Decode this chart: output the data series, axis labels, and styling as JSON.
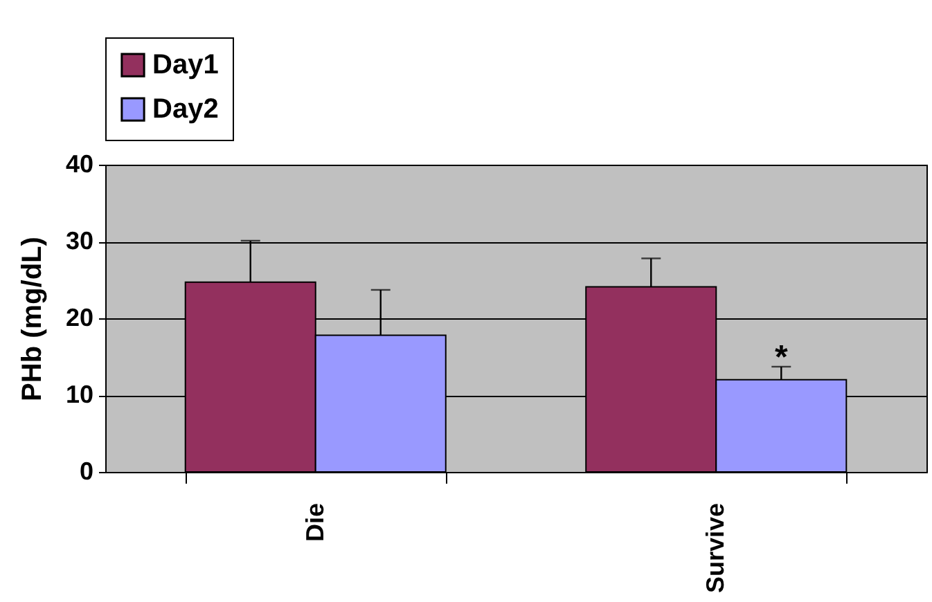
{
  "chart_data": {
    "type": "bar",
    "ylabel": "PHb (mg/dL)",
    "categories": [
      "Die",
      "Survive"
    ],
    "series": [
      {
        "name": "Day1",
        "color": "#93305e",
        "values": [
          24.7,
          24.1
        ],
        "errors": [
          [
            24.7,
            30.1
          ],
          [
            24.1,
            27.8
          ]
        ]
      },
      {
        "name": "Day2",
        "color": "#9999ff",
        "values": [
          17.8,
          12.0
        ],
        "errors": [
          [
            17.8,
            23.7
          ],
          [
            12.0,
            13.7
          ]
        ]
      }
    ],
    "ylim": [
      0,
      40
    ],
    "yticks": [
      0,
      10,
      20,
      30,
      40
    ],
    "grid": "y",
    "legend": "top",
    "annotations": [
      {
        "text": "*",
        "x": "Survive",
        "y": 14.8
      }
    ]
  }
}
